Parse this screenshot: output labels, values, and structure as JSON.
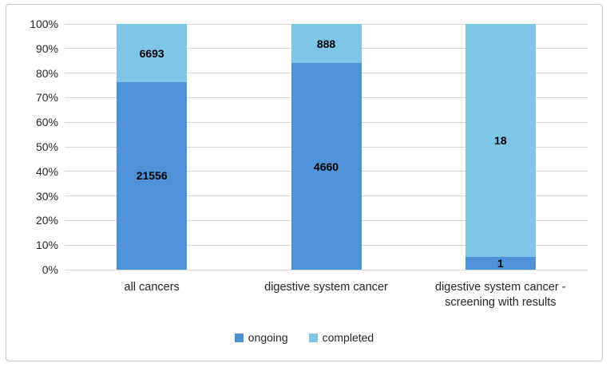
{
  "chart_data": {
    "type": "bar",
    "subtype": "stacked-100-percent",
    "title": "",
    "xlabel": "",
    "ylabel": "",
    "categories": [
      "all cancers",
      "digestive system cancer",
      "digestive system cancer - screening with results"
    ],
    "series": [
      {
        "name": "ongoing",
        "color": "#4E92D8",
        "values": [
          21556,
          4660,
          1
        ]
      },
      {
        "name": "completed",
        "color": "#7EC6E8",
        "values": [
          6693,
          888,
          18
        ]
      }
    ],
    "data_labels": true,
    "y_ticks": [
      "0%",
      "10%",
      "20%",
      "30%",
      "40%",
      "50%",
      "60%",
      "70%",
      "80%",
      "90%",
      "100%"
    ],
    "ylim": [
      0,
      100
    ],
    "grid": true,
    "legend_position": "bottom"
  },
  "style": {
    "grid_color": "#D9D9D9",
    "frame_border_color": "#C8C8C8",
    "axis_text_color": "#262626",
    "data_label_color": "#000000",
    "background": "#FFFFFF"
  }
}
